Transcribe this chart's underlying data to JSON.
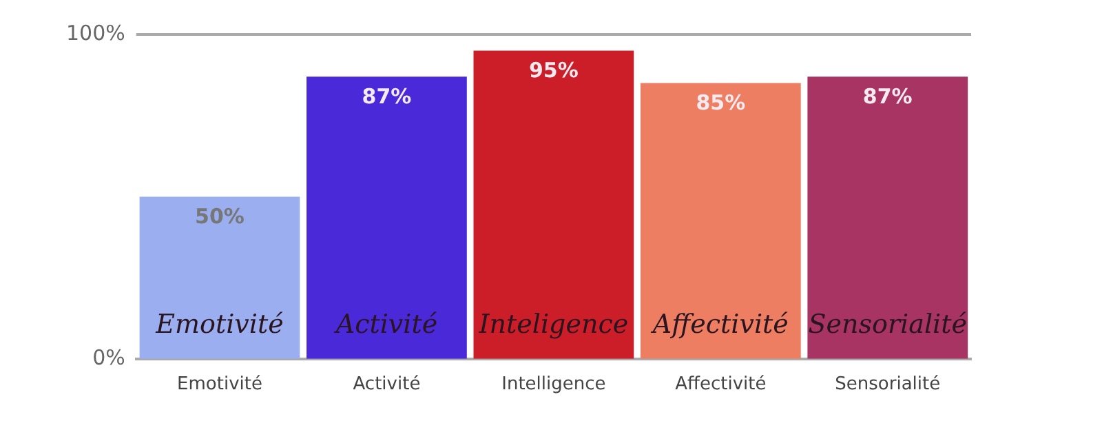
{
  "chart_data": {
    "type": "bar",
    "categories": [
      "Emotivité",
      "Activité",
      "Intelligence",
      "Affectivité",
      "Sensorialité"
    ],
    "values": [
      50,
      87,
      95,
      85,
      87
    ],
    "colors": [
      "#9aaef0",
      "#4a2ad8",
      "#cc1e28",
      "#ee7e62",
      "#a83464"
    ],
    "ylim": [
      0,
      100
    ],
    "yticks": [
      {
        "value": 0,
        "label": "0%"
      },
      {
        "value": 100,
        "label": "100%"
      }
    ],
    "legend": false,
    "value_labels": [
      "50%",
      "87%",
      "95%",
      "85%",
      "87%"
    ],
    "annotations": [
      "Emotivité",
      "Activité",
      "Inteligence",
      "Affectivité",
      "Sensorialité"
    ]
  }
}
